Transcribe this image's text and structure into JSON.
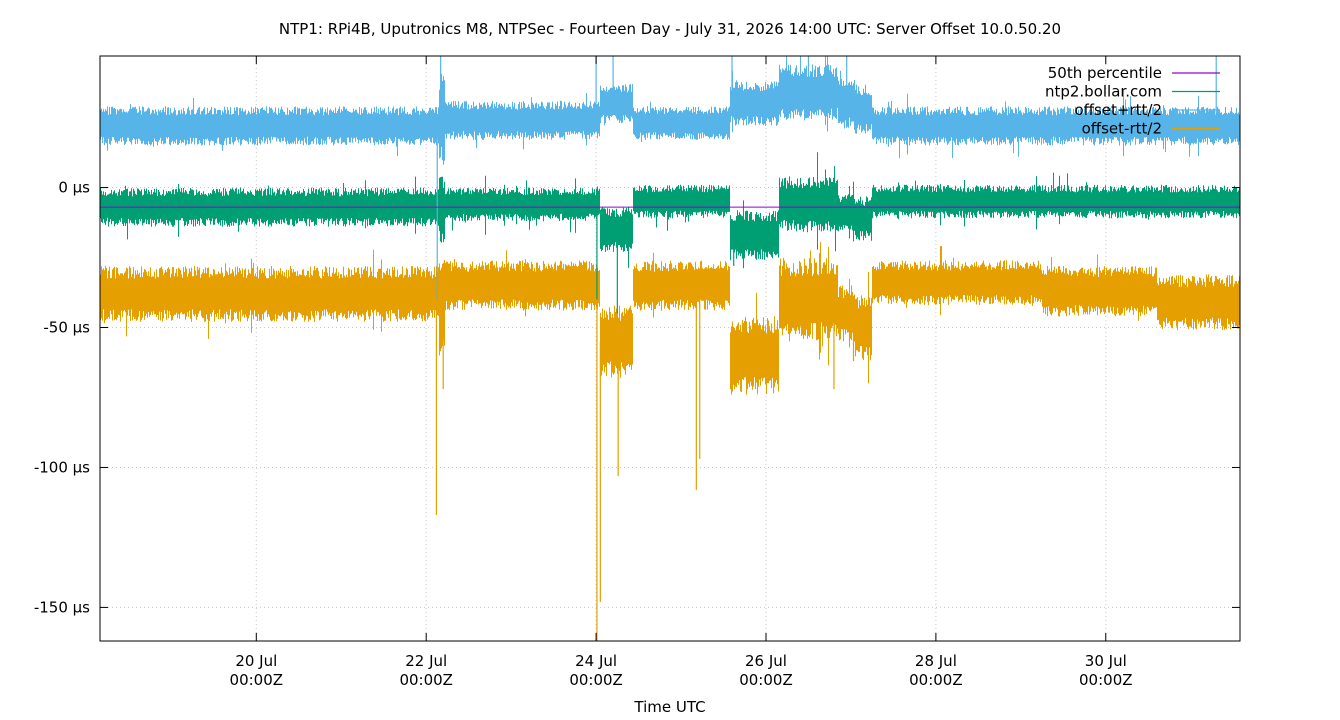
{
  "chart_data": {
    "type": "line",
    "title": "NTP1: RPi4B, Uputronics M8, NTPSec - Fourteen Day - July 31, 2026 14:00 UTC: Server Offset 10.0.50.20",
    "xlabel": "Time UTC",
    "ylabel": "",
    "x_unit": "days since 18 Jul 00:00Z",
    "xlim": [
      0.16,
      13.58
    ],
    "ylim": [
      -162,
      47
    ],
    "y_ticks": [
      {
        "value": 0,
        "label": "0 µs"
      },
      {
        "value": -50,
        "label": "-50 µs"
      },
      {
        "value": -100,
        "label": "-100 µs"
      },
      {
        "value": -150,
        "label": "-150 µs"
      }
    ],
    "x_ticks": [
      {
        "value": 2,
        "line1": "20 Jul",
        "line2": "00:00Z"
      },
      {
        "value": 4,
        "line1": "22 Jul",
        "line2": "00:00Z"
      },
      {
        "value": 6,
        "line1": "24 Jul",
        "line2": "00:00Z"
      },
      {
        "value": 8,
        "line1": "26 Jul",
        "line2": "00:00Z"
      },
      {
        "value": 10,
        "line1": "28 Jul",
        "line2": "00:00Z"
      },
      {
        "value": 12,
        "line1": "30 Jul",
        "line2": "00:00Z"
      }
    ],
    "grid": true,
    "legend_position": "top-right",
    "series": [
      {
        "name": "offset-rtt/2",
        "color": "#e69f00",
        "kind": "band",
        "segments": [
          {
            "x0": 0.16,
            "x1": 4.15,
            "center": -38,
            "amp": 10
          },
          {
            "x0": 4.15,
            "x1": 4.22,
            "center": -42,
            "amp": 18
          },
          {
            "x0": 4.22,
            "x1": 6.05,
            "center": -35,
            "amp": 9
          },
          {
            "x0": 6.05,
            "x1": 6.43,
            "center": -55,
            "amp": 13
          },
          {
            "x0": 6.43,
            "x1": 7.58,
            "center": -35,
            "amp": 9
          },
          {
            "x0": 7.58,
            "x1": 8.15,
            "center": -60,
            "amp": 14
          },
          {
            "x0": 8.15,
            "x1": 8.85,
            "center": -40,
            "amp": 15
          },
          {
            "x0": 8.85,
            "x1": 9.05,
            "center": -45,
            "amp": 10
          },
          {
            "x0": 9.05,
            "x1": 9.25,
            "center": -50,
            "amp": 12
          },
          {
            "x0": 9.25,
            "x1": 11.25,
            "center": -34,
            "amp": 8
          },
          {
            "x0": 11.25,
            "x1": 12.6,
            "center": -37,
            "amp": 9
          },
          {
            "x0": 12.6,
            "x1": 13.58,
            "center": -41,
            "amp": 10
          }
        ],
        "spikes": [
          {
            "x": 4.12,
            "y": -117
          },
          {
            "x": 4.2,
            "y": -72
          },
          {
            "x": 6.01,
            "y": -162
          },
          {
            "x": 6.05,
            "y": -148
          },
          {
            "x": 6.26,
            "y": -103
          },
          {
            "x": 7.18,
            "y": -108
          },
          {
            "x": 7.22,
            "y": -97
          },
          {
            "x": 8.8,
            "y": -72
          },
          {
            "x": 9.03,
            "y": -62
          }
        ]
      },
      {
        "name": "ntp2.bollar.com",
        "color": "#009e73",
        "kind": "band",
        "segments": [
          {
            "x0": 0.16,
            "x1": 4.15,
            "center": -7,
            "amp": 7
          },
          {
            "x0": 4.15,
            "x1": 4.22,
            "center": -8,
            "amp": 12
          },
          {
            "x0": 4.22,
            "x1": 6.05,
            "center": -6,
            "amp": 6
          },
          {
            "x0": 6.05,
            "x1": 6.43,
            "center": -15,
            "amp": 8
          },
          {
            "x0": 6.43,
            "x1": 7.58,
            "center": -5,
            "amp": 6
          },
          {
            "x0": 7.58,
            "x1": 8.15,
            "center": -17,
            "amp": 9
          },
          {
            "x0": 8.15,
            "x1": 8.85,
            "center": -6,
            "amp": 10
          },
          {
            "x0": 8.85,
            "x1": 9.05,
            "center": -9,
            "amp": 7
          },
          {
            "x0": 9.05,
            "x1": 9.25,
            "center": -11,
            "amp": 8
          },
          {
            "x0": 9.25,
            "x1": 13.58,
            "center": -5,
            "amp": 6
          }
        ],
        "spikes": [
          {
            "x": 6.01,
            "y": -40
          },
          {
            "x": 6.25,
            "y": -45
          },
          {
            "x": 7.62,
            "y": -28
          }
        ]
      },
      {
        "name": "offset+rtt/2",
        "color": "#56b4e9",
        "kind": "band",
        "segments": [
          {
            "x0": 0.16,
            "x1": 4.15,
            "center": 22,
            "amp": 7
          },
          {
            "x0": 4.15,
            "x1": 4.22,
            "center": 25,
            "amp": 18
          },
          {
            "x0": 4.22,
            "x1": 6.05,
            "center": 24,
            "amp": 7
          },
          {
            "x0": 6.05,
            "x1": 6.43,
            "center": 30,
            "amp": 7
          },
          {
            "x0": 6.43,
            "x1": 7.58,
            "center": 23,
            "amp": 6
          },
          {
            "x0": 7.58,
            "x1": 8.15,
            "center": 30,
            "amp": 8
          },
          {
            "x0": 8.15,
            "x1": 8.85,
            "center": 34,
            "amp": 10
          },
          {
            "x0": 8.85,
            "x1": 9.05,
            "center": 30,
            "amp": 9
          },
          {
            "x0": 9.05,
            "x1": 9.25,
            "center": 28,
            "amp": 9
          },
          {
            "x0": 9.25,
            "x1": 13.58,
            "center": 22,
            "amp": 7
          }
        ],
        "spikes": [
          {
            "x": 4.13,
            "y": -40
          },
          {
            "x": 4.17,
            "y": 47
          },
          {
            "x": 6.0,
            "y": 47
          },
          {
            "x": 6.2,
            "y": 47
          },
          {
            "x": 7.6,
            "y": 47
          },
          {
            "x": 8.5,
            "y": 47
          },
          {
            "x": 8.95,
            "y": 47
          },
          {
            "x": 13.3,
            "y": 47
          }
        ]
      },
      {
        "name": "50th percentile",
        "color": "#9400d3",
        "kind": "line",
        "x": [
          0.16,
          13.58
        ],
        "y": [
          -7,
          -7
        ]
      }
    ],
    "legend": [
      {
        "label": "50th percentile",
        "color": "#9400d3"
      },
      {
        "label": "ntp2.bollar.com",
        "color": "#009e73"
      },
      {
        "label": "offset+rtt/2",
        "color": "#56b4e9"
      },
      {
        "label": "offset-rtt/2",
        "color": "#e69f00"
      }
    ]
  }
}
